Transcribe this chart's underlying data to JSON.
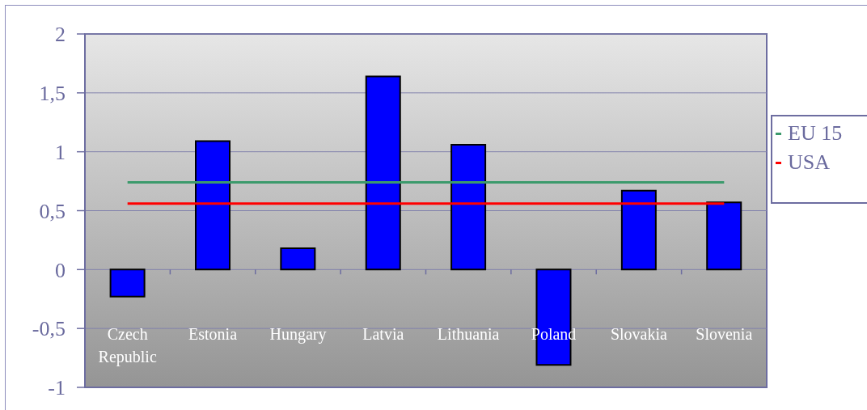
{
  "chart_data": {
    "type": "bar",
    "categories": [
      "Czech Republic",
      "Estonia",
      "Hungary",
      "Latvia",
      "Lithuania",
      "Poland",
      "Slovakia",
      "Slovenia"
    ],
    "series": [
      {
        "color": "#0000ff",
        "values": [
          -0.23,
          1.09,
          0.18,
          1.64,
          1.06,
          -0.81,
          0.67,
          0.57
        ]
      },
      {
        "type": "line",
        "name": "EU 15",
        "color": "#3c9a6c",
        "values": [
          0.74,
          0.74,
          0.74,
          0.74,
          0.74,
          0.74,
          0.74,
          0.74
        ]
      },
      {
        "type": "line",
        "name": "USA",
        "color": "#ff0000",
        "values": [
          0.56,
          0.56,
          0.56,
          0.56,
          0.56,
          0.56,
          0.56,
          0.56
        ]
      }
    ],
    "ylim": [
      -1,
      2
    ],
    "yticks": [
      -1,
      {
        "value": -0.5,
        "label": "-0,5"
      },
      0,
      {
        "value": 0.5,
        "label": "0,5"
      },
      1,
      {
        "value": 1.5,
        "label": "1,5"
      },
      2
    ],
    "grid": "y",
    "legend": "right",
    "marker": "none"
  }
}
